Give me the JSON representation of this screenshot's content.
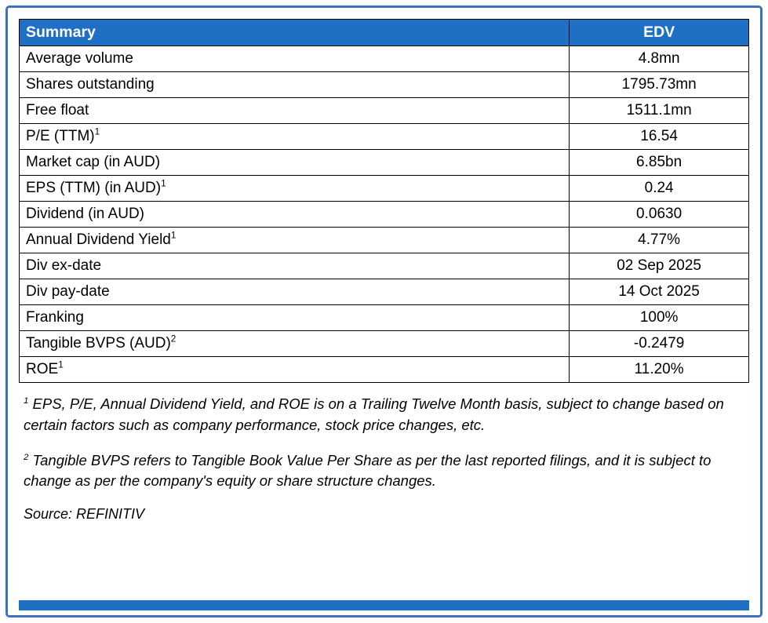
{
  "table": {
    "header": {
      "label": "Summary",
      "value": "EDV"
    },
    "rows": [
      {
        "label": "Average volume",
        "sup": "",
        "value": "4.8mn"
      },
      {
        "label": "Shares outstanding",
        "sup": "",
        "value": "1795.73mn"
      },
      {
        "label": "Free float",
        "sup": "",
        "value": "1511.1mn"
      },
      {
        "label": "P/E (TTM)",
        "sup": "1",
        "value": "16.54"
      },
      {
        "label": "Market cap (in AUD)",
        "sup": "",
        "value": "6.85bn"
      },
      {
        "label": "EPS (TTM) (in AUD)",
        "sup": "1",
        "value": "0.24"
      },
      {
        "label": "Dividend (in AUD)",
        "sup": "",
        "value": "0.0630"
      },
      {
        "label": "Annual Dividend Yield",
        "sup": "1",
        "value": "4.77%"
      },
      {
        "label": "Div ex-date",
        "sup": "",
        "value": "02 Sep 2025"
      },
      {
        "label": "Div pay-date",
        "sup": "",
        "value": "14 Oct 2025"
      },
      {
        "label": "Franking",
        "sup": "",
        "value": "100%"
      },
      {
        "label": "Tangible BVPS (AUD)",
        "sup": "2",
        "value": "-0.2479"
      },
      {
        "label": "ROE",
        "sup": "1",
        "value": "11.20%"
      }
    ]
  },
  "footnotes": [
    {
      "sup": "1",
      "text": "EPS, P/E, Annual Dividend Yield, and ROE is on a Trailing Twelve Month basis, subject to change based on certain factors such as company performance, stock price changes, etc."
    },
    {
      "sup": "2",
      "text": "Tangible BVPS refers to Tangible Book Value Per Share as per the last reported filings, and it is subject to change as per the company's equity or share structure changes."
    }
  ],
  "source": "Source: REFINITIV",
  "colors": {
    "header_bg": "#1f70c5",
    "header_text": "#ffffff",
    "frame_border": "#3f6fc1",
    "table_border": "#000000",
    "footer_bar": "#1f70c5"
  }
}
